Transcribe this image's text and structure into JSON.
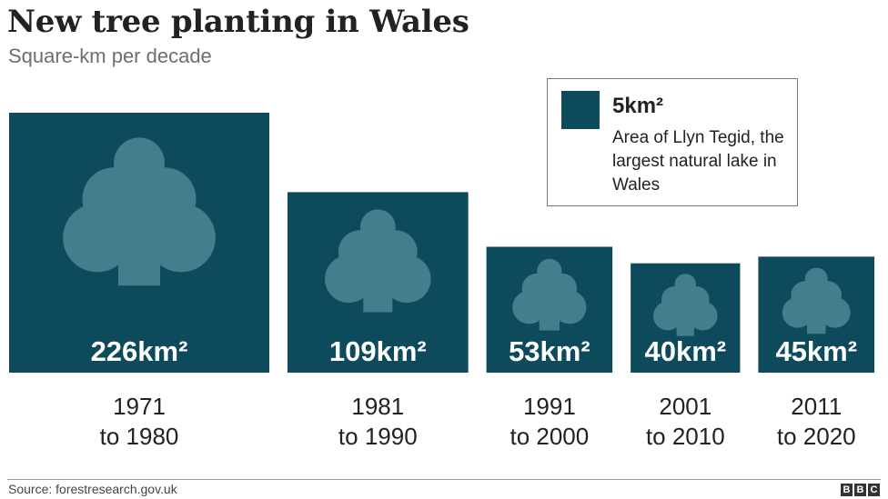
{
  "header": {
    "title": "New tree planting in Wales",
    "subtitle": "Square-km per decade"
  },
  "legend": {
    "value_label": "5km²",
    "description": "Area of Llyn Tegid, the largest natural lake in Wales",
    "value": 5
  },
  "chart_data": {
    "type": "bar",
    "unit": "km²",
    "categories": [
      [
        "1971",
        "to 1980"
      ],
      [
        "1981",
        "to 1990"
      ],
      [
        "1991",
        "to 2000"
      ],
      [
        "2001",
        "to 2010"
      ],
      [
        "2011",
        "to 2020"
      ]
    ],
    "values": [
      226,
      109,
      53,
      40,
      45
    ],
    "value_labels": [
      "226km²",
      "109km²",
      "53km²",
      "40km²",
      "45km²"
    ],
    "title": "New tree planting in Wales",
    "subtitle": "Square-km per decade",
    "legend_placement": "top-right",
    "grid": false
  },
  "colors": {
    "box": "#0d4a5c",
    "tree": "#447e8c",
    "label": "#ffffff",
    "text": "#222222"
  },
  "footer": {
    "source": "Source: forestresearch.gov.uk",
    "logo_letters": [
      "B",
      "B",
      "C"
    ]
  }
}
